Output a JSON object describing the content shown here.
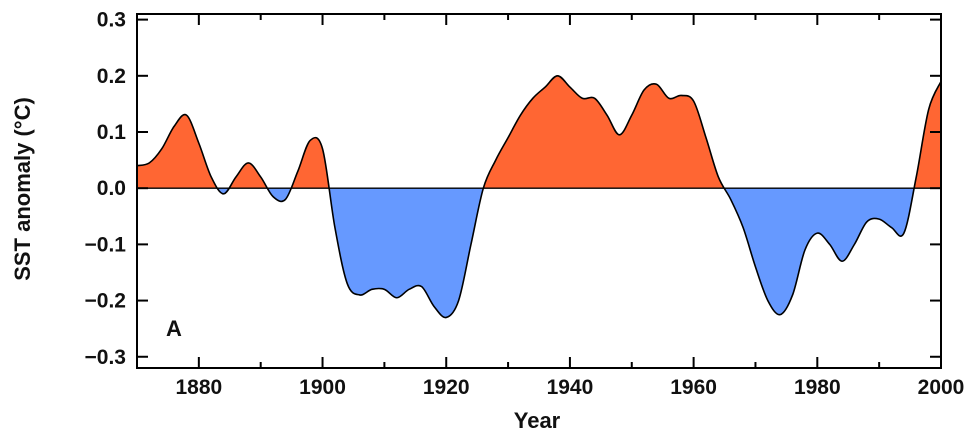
{
  "chart_data": {
    "type": "area",
    "panel_label": "A",
    "xlabel": "Year",
    "ylabel": "SST anomaly (°C)",
    "xlim": [
      1870,
      2000
    ],
    "ylim": [
      -0.32,
      0.31
    ],
    "x_ticks": [
      1880,
      1900,
      1920,
      1940,
      1960,
      1980,
      2000
    ],
    "y_ticks": [
      -0.3,
      -0.2,
      -0.1,
      0.0,
      0.1,
      0.2,
      0.3
    ],
    "y_tick_labels": [
      "−0.3",
      "−0.2",
      "−0.1",
      "0.0",
      "0.1",
      "0.2",
      "0.3"
    ],
    "grid": false,
    "colors": {
      "positive": "#ff6633",
      "negative": "#6699ff",
      "line": "#000000",
      "zero_line": "#000000"
    },
    "series": [
      {
        "x": [
          1870,
          1872,
          1874,
          1876,
          1878,
          1880,
          1882,
          1884,
          1886,
          1888,
          1890,
          1892,
          1894,
          1896,
          1898,
          1900,
          1902,
          1904,
          1906,
          1908,
          1910,
          1912,
          1914,
          1916,
          1918,
          1920,
          1922,
          1924,
          1926,
          1928,
          1930,
          1932,
          1934,
          1936,
          1938,
          1940,
          1942,
          1944,
          1946,
          1948,
          1950,
          1952,
          1954,
          1956,
          1958,
          1960,
          1962,
          1964,
          1966,
          1968,
          1970,
          1972,
          1974,
          1976,
          1978,
          1980,
          1982,
          1984,
          1986,
          1988,
          1990,
          1992,
          1994,
          1996,
          1998,
          2000
        ],
        "y": [
          0.04,
          0.045,
          0.07,
          0.11,
          0.13,
          0.08,
          0.02,
          -0.01,
          0.02,
          0.045,
          0.02,
          -0.015,
          -0.02,
          0.03,
          0.085,
          0.07,
          -0.07,
          -0.17,
          -0.19,
          -0.18,
          -0.18,
          -0.195,
          -0.18,
          -0.175,
          -0.21,
          -0.23,
          -0.2,
          -0.1,
          0.0,
          0.05,
          0.09,
          0.13,
          0.16,
          0.18,
          0.2,
          0.18,
          0.16,
          0.16,
          0.13,
          0.095,
          0.13,
          0.175,
          0.185,
          0.16,
          0.165,
          0.155,
          0.09,
          0.02,
          -0.02,
          -0.07,
          -0.14,
          -0.2,
          -0.225,
          -0.19,
          -0.11,
          -0.08,
          -0.1,
          -0.13,
          -0.1,
          -0.06,
          -0.055,
          -0.07,
          -0.08,
          0.02,
          0.14,
          0.19
        ]
      }
    ]
  }
}
